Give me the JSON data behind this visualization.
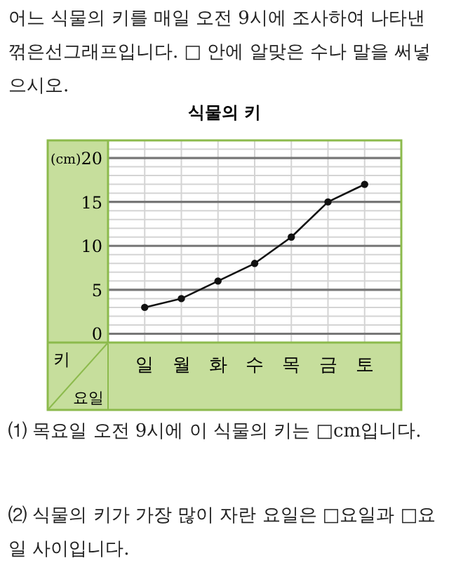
{
  "chart_data": {
    "type": "line",
    "title": "식물의 키",
    "subtitle": "어느 식물의 키를 매일 오전 9시에 조사하여 나타낸 꺾은선그래프입니다. □ 안에 알맞은 수나 말을 써넣으시오.",
    "xlabel": "요일",
    "ylabel": "키",
    "annotations": [
      "(cm)",
      "⑴ 목요일 오전 9시에 이 식물의 키는 □cm입니다.",
      "⑵ 식물의 키가 가장 많이 자란 요일은 □요일과 □요일 사이입니다."
    ],
    "categories": [
      "일",
      "월",
      "화",
      "수",
      "목",
      "금",
      "토"
    ],
    "series": [
      {
        "color": "#111111",
        "values": [
          3,
          4,
          6,
          8,
          11,
          15,
          17
        ]
      }
    ],
    "ylim": [
      -1,
      22
    ],
    "yticks": [
      0,
      5,
      10,
      15,
      20
    ],
    "grid": true,
    "marker": "circle",
    "line_style": "solid"
  }
}
